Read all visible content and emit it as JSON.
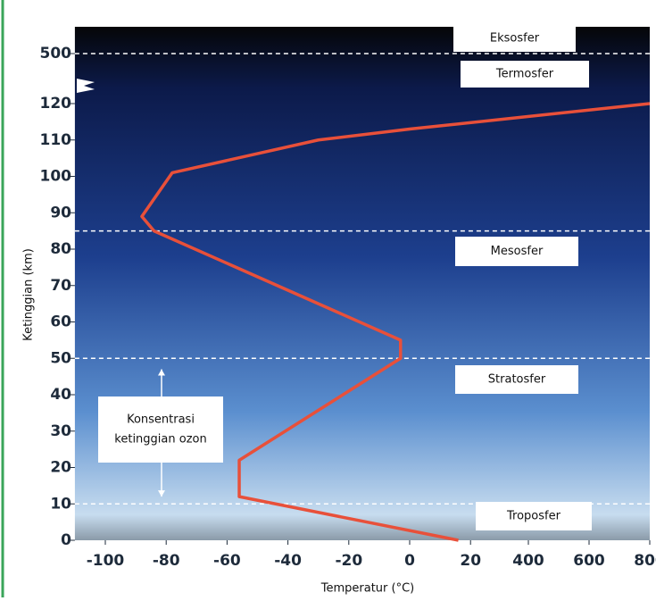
{
  "chart_data": {
    "type": "line",
    "xlabel": "Temperatur (°C)",
    "ylabel": "Ketinggian (km)",
    "x": [
      16,
      -56,
      -56,
      -3,
      -3,
      -84,
      -88,
      -78,
      -30,
      0,
      800
    ],
    "series": [
      {
        "color": "#e8503a",
        "values": [
          0,
          12,
          22,
          50,
          55,
          85,
          89,
          101,
          110,
          113,
          120
        ]
      }
    ],
    "xlim": [
      -110,
      800
    ],
    "ylim": [
      0,
      520
    ],
    "xticks": [
      -100,
      -80,
      -60,
      -40,
      -20,
      0,
      20,
      400,
      600,
      800
    ],
    "yticks": [
      0,
      10,
      20,
      30,
      40,
      50,
      60,
      70,
      80,
      90,
      100,
      110,
      120,
      500
    ],
    "boundaries": [
      500,
      85,
      50,
      10
    ],
    "layers": [
      "Eksosfer",
      "Termosfer",
      "Mesosfer",
      "Stratosfer",
      "Troposfer"
    ],
    "ozone": {
      "label": [
        "Konsentrasi",
        "ketinggian ozon"
      ],
      "range": [
        12,
        47
      ]
    }
  }
}
